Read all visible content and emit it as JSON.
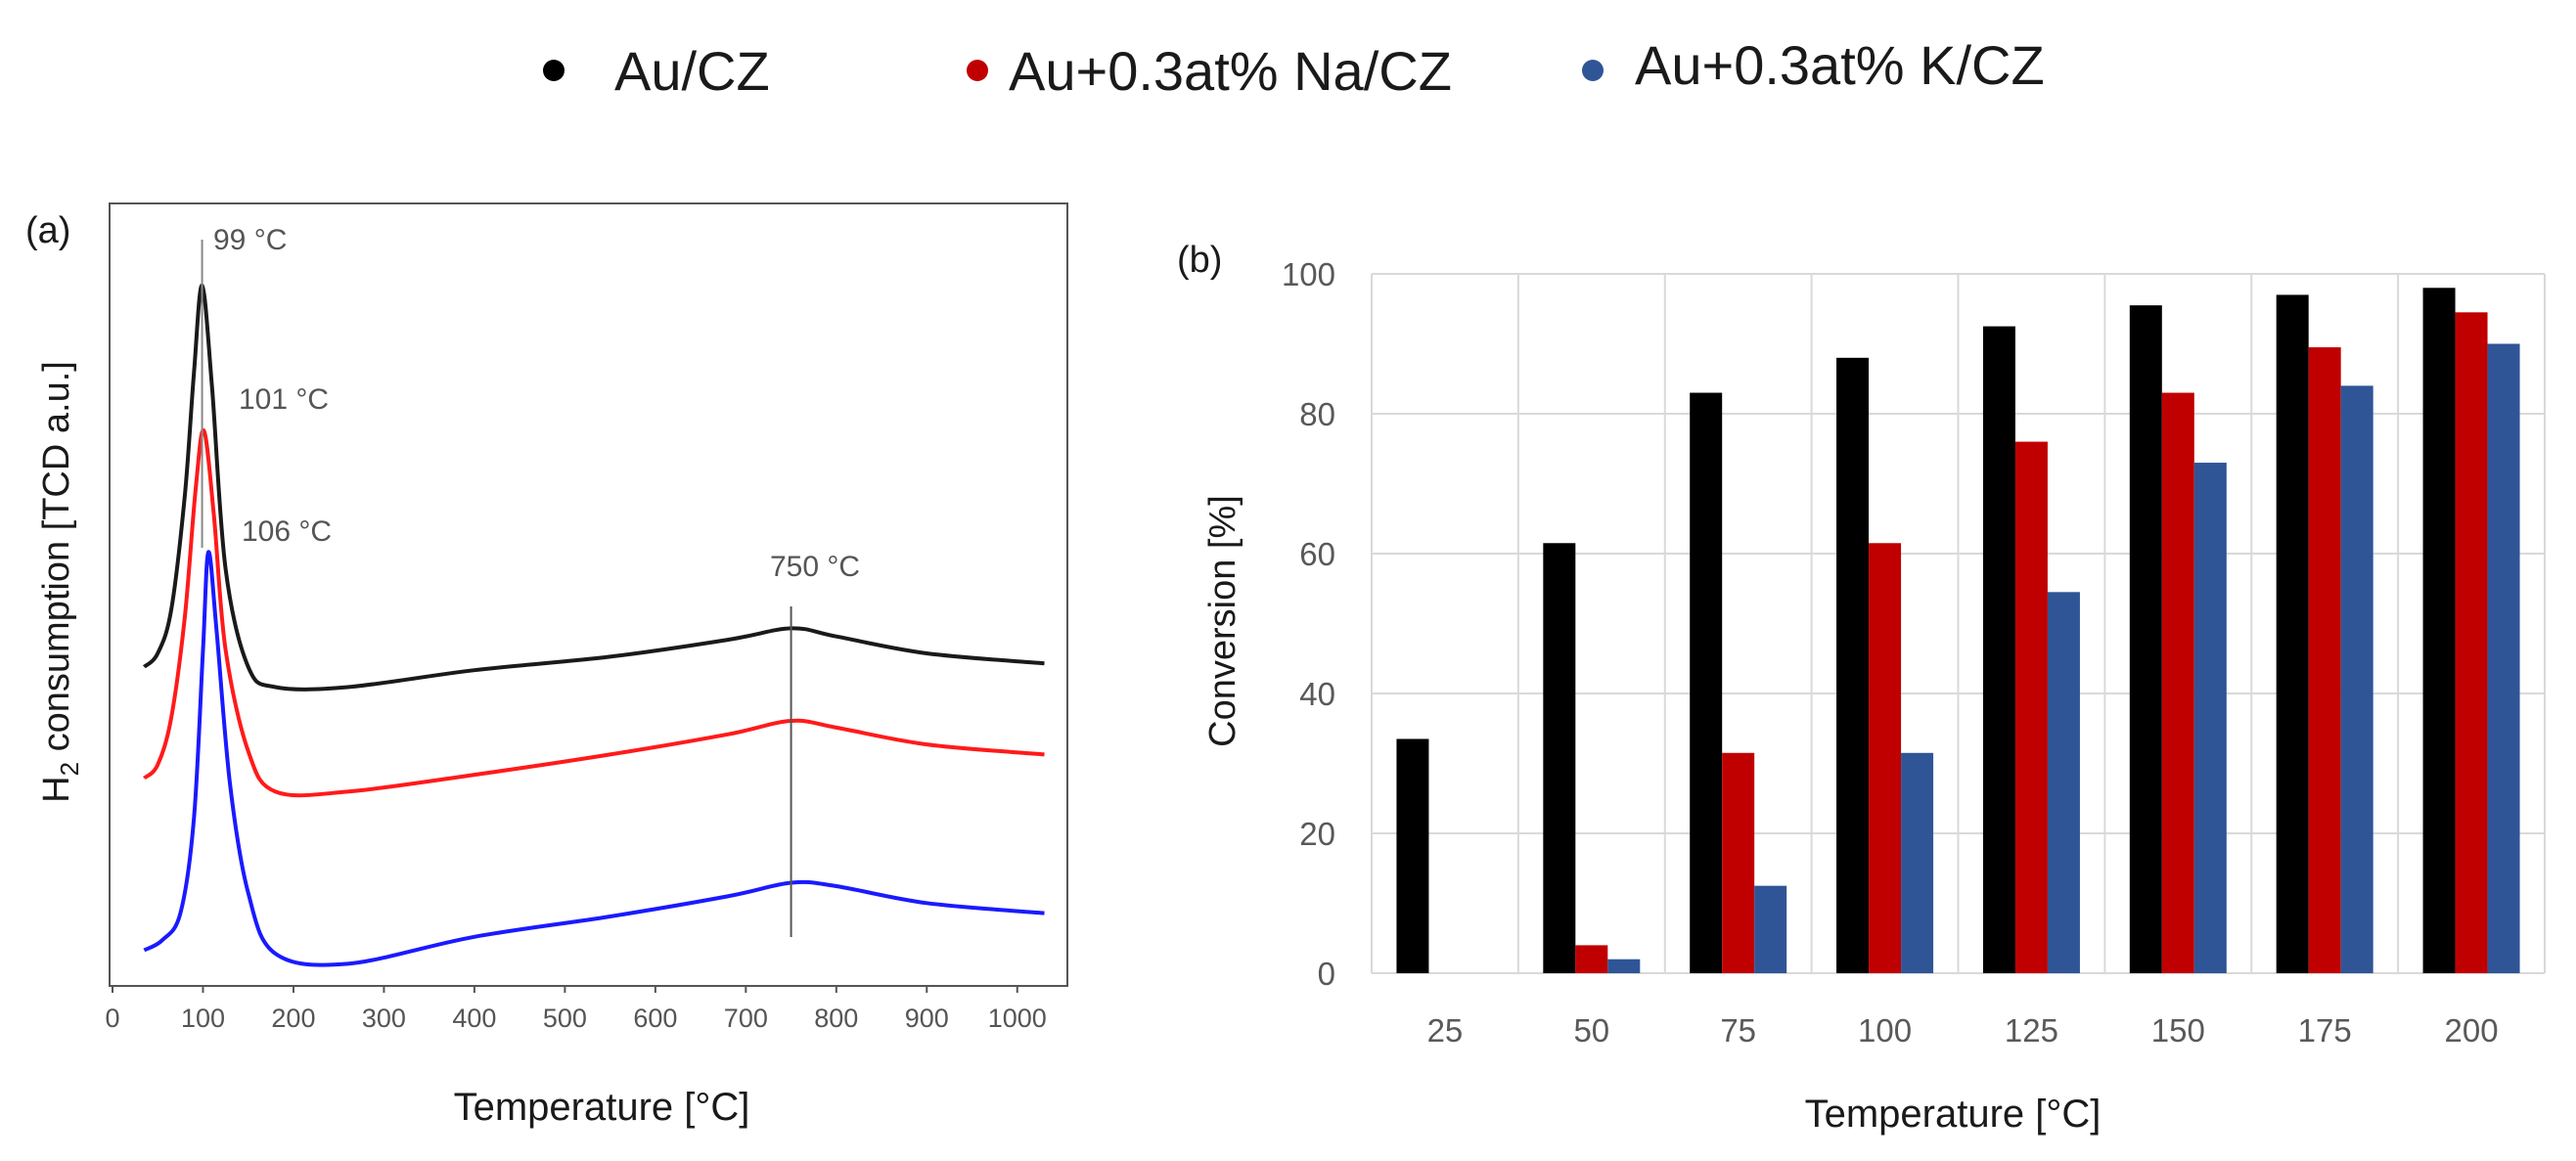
{
  "legend": {
    "items": [
      {
        "label": "Au/CZ",
        "color": "#000000"
      },
      {
        "label": "Au+0.3at% Na/CZ",
        "color": "#c00000"
      },
      {
        "label": "Au+0.3at% K/CZ",
        "color": "#2f5597"
      }
    ]
  },
  "chart_data": [
    {
      "panel_label": "(a)",
      "type": "line",
      "title": "",
      "xlabel": "Temperature  [°C]",
      "ylabel_main": "H",
      "ylabel_sub": "2",
      "ylabel_rest": " consumption  [TCD a.u.]",
      "xlim": [
        0,
        1050
      ],
      "ylim": [
        0,
        10
      ],
      "x_ticks": [
        "0",
        "100",
        "200",
        "300",
        "400",
        "500",
        "600",
        "700",
        "800",
        "900",
        "1000"
      ],
      "annotations": [
        "99 °C",
        "101 °C",
        "106 °C",
        "750 °C"
      ],
      "series": [
        {
          "name": "Au/CZ",
          "color": "#1a1a1a",
          "x": [
            35,
            50,
            65,
            80,
            90,
            99,
            110,
            125,
            150,
            180,
            260,
            400,
            550,
            680,
            750,
            800,
            900,
            1030
          ],
          "y": [
            4.25,
            4.45,
            5.1,
            6.8,
            8.6,
            9.9,
            8.4,
            5.7,
            4.25,
            3.95,
            3.95,
            4.2,
            4.4,
            4.65,
            4.82,
            4.7,
            4.45,
            4.3
          ]
        },
        {
          "name": "Au+0.3at% Na/CZ",
          "color": "#ff1a1a",
          "x": [
            35,
            50,
            65,
            80,
            92,
            101,
            112,
            125,
            150,
            180,
            260,
            400,
            550,
            680,
            750,
            800,
            900,
            1030
          ],
          "y": [
            2.6,
            2.8,
            3.5,
            5.0,
            6.9,
            7.75,
            6.5,
            4.5,
            3.0,
            2.4,
            2.4,
            2.65,
            2.95,
            3.25,
            3.45,
            3.35,
            3.1,
            2.95
          ]
        },
        {
          "name": "Au+0.3at% K/CZ",
          "color": "#1a1aff",
          "x": [
            35,
            55,
            75,
            90,
            100,
            106,
            115,
            130,
            150,
            180,
            260,
            400,
            550,
            680,
            750,
            800,
            900,
            1030
          ],
          "y": [
            0.05,
            0.2,
            0.6,
            2.0,
            4.5,
            5.95,
            4.8,
            2.5,
            0.9,
            0.0,
            -0.15,
            0.25,
            0.55,
            0.85,
            1.05,
            1.0,
            0.75,
            0.6
          ]
        }
      ]
    },
    {
      "panel_label": "(b)",
      "type": "bar",
      "title": "",
      "xlabel": "Temperature  [°C]",
      "ylabel": "Conversion  [%]",
      "ylim": [
        0,
        100
      ],
      "y_ticks": [
        "0",
        "20",
        "40",
        "60",
        "80",
        "100"
      ],
      "categories": [
        "25",
        "50",
        "75",
        "100",
        "125",
        "150",
        "175",
        "200"
      ],
      "series": [
        {
          "name": "Au/CZ",
          "color": "#000000",
          "values": [
            33.5,
            61.5,
            83,
            88,
            92.5,
            95.5,
            97,
            98
          ]
        },
        {
          "name": "Au+0.3at% Na/CZ",
          "color": "#c00000",
          "values": [
            0,
            4,
            31.5,
            61.5,
            76,
            83,
            89.5,
            94.5
          ]
        },
        {
          "name": "Au+0.3at% K/CZ",
          "color": "#2f5597",
          "values": [
            0,
            2,
            12.5,
            31.5,
            54.5,
            73,
            84,
            90
          ]
        }
      ]
    }
  ]
}
